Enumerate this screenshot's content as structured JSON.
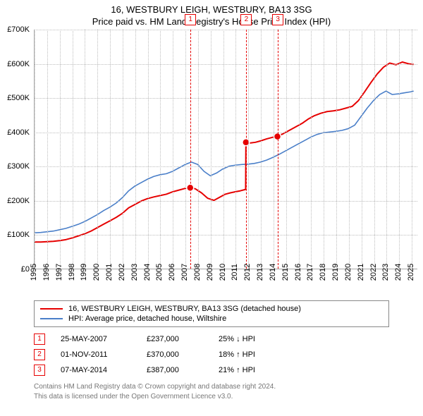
{
  "titles": {
    "main": "16, WESTBURY LEIGH, WESTBURY, BA13 3SG",
    "sub": "Price paid vs. HM Land Registry's House Price Index (HPI)"
  },
  "chart": {
    "type": "line",
    "background_color": "#ffffff",
    "grid_color": "#bdbdbd",
    "axis_color": "#aaaaaa",
    "label_fontsize": 11,
    "xlim": [
      1995,
      2025.5
    ],
    "ylim": [
      0,
      700
    ],
    "y_ticks": [
      0,
      100,
      200,
      300,
      400,
      500,
      600,
      700
    ],
    "y_tick_labels": [
      "£0",
      "£100K",
      "£200K",
      "£300K",
      "£400K",
      "£500K",
      "£600K",
      "£700K"
    ],
    "x_ticks": [
      1995,
      1996,
      1997,
      1998,
      1999,
      2000,
      2001,
      2002,
      2003,
      2004,
      2005,
      2006,
      2007,
      2008,
      2009,
      2010,
      2011,
      2012,
      2013,
      2014,
      2015,
      2016,
      2017,
      2018,
      2019,
      2020,
      2021,
      2022,
      2023,
      2024,
      2025
    ],
    "series": [
      {
        "id": "property",
        "label": "16, WESTBURY LEIGH, WESTBURY, BA13 3SG (detached house)",
        "color": "#e60000",
        "line_width": 2,
        "points": [
          [
            1995.0,
            78
          ],
          [
            1995.5,
            78
          ],
          [
            1996.0,
            79
          ],
          [
            1996.5,
            80
          ],
          [
            1997.0,
            82
          ],
          [
            1997.5,
            85
          ],
          [
            1998.0,
            90
          ],
          [
            1998.5,
            96
          ],
          [
            1999.0,
            102
          ],
          [
            1999.5,
            110
          ],
          [
            2000.0,
            120
          ],
          [
            2000.5,
            130
          ],
          [
            2001.0,
            140
          ],
          [
            2001.5,
            150
          ],
          [
            2002.0,
            162
          ],
          [
            2002.5,
            178
          ],
          [
            2003.0,
            188
          ],
          [
            2003.5,
            198
          ],
          [
            2004.0,
            205
          ],
          [
            2004.5,
            210
          ],
          [
            2005.0,
            214
          ],
          [
            2005.5,
            218
          ],
          [
            2006.0,
            225
          ],
          [
            2006.5,
            230
          ],
          [
            2007.0,
            235
          ],
          [
            2007.4,
            237
          ],
          [
            2007.8,
            234
          ],
          [
            2008.3,
            222
          ],
          [
            2008.8,
            206
          ],
          [
            2009.3,
            200
          ],
          [
            2009.8,
            210
          ],
          [
            2010.2,
            218
          ],
          [
            2010.6,
            222
          ],
          [
            2011.0,
            225
          ],
          [
            2011.4,
            228
          ],
          [
            2011.82,
            232
          ],
          [
            2011.84,
            370
          ],
          [
            2012.2,
            368
          ],
          [
            2012.6,
            370
          ],
          [
            2013.0,
            374
          ],
          [
            2013.5,
            380
          ],
          [
            2014.0,
            385
          ],
          [
            2014.35,
            387
          ],
          [
            2014.8,
            395
          ],
          [
            2015.3,
            405
          ],
          [
            2015.8,
            415
          ],
          [
            2016.3,
            425
          ],
          [
            2016.8,
            438
          ],
          [
            2017.3,
            448
          ],
          [
            2017.8,
            455
          ],
          [
            2018.3,
            460
          ],
          [
            2018.8,
            462
          ],
          [
            2019.3,
            465
          ],
          [
            2019.8,
            470
          ],
          [
            2020.3,
            475
          ],
          [
            2020.8,
            492
          ],
          [
            2021.3,
            518
          ],
          [
            2021.8,
            545
          ],
          [
            2022.3,
            570
          ],
          [
            2022.8,
            590
          ],
          [
            2023.3,
            602
          ],
          [
            2023.8,
            597
          ],
          [
            2024.3,
            605
          ],
          [
            2024.8,
            600
          ],
          [
            2025.2,
            598
          ]
        ]
      },
      {
        "id": "hpi",
        "label": "HPI: Average price, detached house, Wiltshire",
        "color": "#4a7fc9",
        "line_width": 1.6,
        "points": [
          [
            1995.0,
            105
          ],
          [
            1995.5,
            106
          ],
          [
            1996.0,
            108
          ],
          [
            1996.5,
            110
          ],
          [
            1997.0,
            114
          ],
          [
            1997.5,
            118
          ],
          [
            1998.0,
            124
          ],
          [
            1998.5,
            130
          ],
          [
            1999.0,
            138
          ],
          [
            1999.5,
            148
          ],
          [
            2000.0,
            158
          ],
          [
            2000.5,
            170
          ],
          [
            2001.0,
            180
          ],
          [
            2001.5,
            192
          ],
          [
            2002.0,
            208
          ],
          [
            2002.5,
            228
          ],
          [
            2003.0,
            242
          ],
          [
            2003.5,
            252
          ],
          [
            2004.0,
            262
          ],
          [
            2004.5,
            270
          ],
          [
            2005.0,
            275
          ],
          [
            2005.5,
            278
          ],
          [
            2006.0,
            285
          ],
          [
            2006.5,
            295
          ],
          [
            2007.0,
            305
          ],
          [
            2007.5,
            312
          ],
          [
            2008.0,
            305
          ],
          [
            2008.5,
            285
          ],
          [
            2009.0,
            272
          ],
          [
            2009.5,
            280
          ],
          [
            2010.0,
            292
          ],
          [
            2010.5,
            300
          ],
          [
            2011.0,
            303
          ],
          [
            2011.5,
            305
          ],
          [
            2012.0,
            306
          ],
          [
            2012.5,
            308
          ],
          [
            2013.0,
            312
          ],
          [
            2013.5,
            318
          ],
          [
            2014.0,
            326
          ],
          [
            2014.5,
            335
          ],
          [
            2015.0,
            345
          ],
          [
            2015.5,
            355
          ],
          [
            2016.0,
            365
          ],
          [
            2016.5,
            375
          ],
          [
            2017.0,
            385
          ],
          [
            2017.5,
            393
          ],
          [
            2018.0,
            398
          ],
          [
            2018.5,
            400
          ],
          [
            2019.0,
            402
          ],
          [
            2019.5,
            405
          ],
          [
            2020.0,
            410
          ],
          [
            2020.5,
            420
          ],
          [
            2021.0,
            445
          ],
          [
            2021.5,
            470
          ],
          [
            2022.0,
            492
          ],
          [
            2022.5,
            510
          ],
          [
            2023.0,
            520
          ],
          [
            2023.5,
            510
          ],
          [
            2024.0,
            512
          ],
          [
            2024.5,
            515
          ],
          [
            2025.0,
            518
          ],
          [
            2025.2,
            520
          ]
        ]
      }
    ],
    "markers": [
      {
        "x": 2007.4,
        "y": 237,
        "color": "#e60000",
        "radius": 5
      },
      {
        "x": 2011.84,
        "y": 370,
        "color": "#e60000",
        "radius": 5
      },
      {
        "x": 2014.35,
        "y": 387,
        "color": "#e60000",
        "radius": 5
      }
    ],
    "event_lines": [
      {
        "x": 2007.4,
        "label": "1",
        "color": "#e60000"
      },
      {
        "x": 2011.84,
        "label": "2",
        "color": "#e60000"
      },
      {
        "x": 2014.35,
        "label": "3",
        "color": "#e60000"
      }
    ]
  },
  "legend": {
    "items": [
      {
        "color": "#e60000",
        "label": "16, WESTBURY LEIGH, WESTBURY, BA13 3SG (detached house)"
      },
      {
        "color": "#4a7fc9",
        "label": "HPI: Average price, detached house, Wiltshire"
      }
    ]
  },
  "events_table": {
    "rows": [
      {
        "n": "1",
        "color": "#e60000",
        "date": "25-MAY-2007",
        "price": "£237,000",
        "diff": "25% ↓ HPI"
      },
      {
        "n": "2",
        "color": "#e60000",
        "date": "01-NOV-2011",
        "price": "£370,000",
        "diff": "18% ↑ HPI"
      },
      {
        "n": "3",
        "color": "#e60000",
        "date": "07-MAY-2014",
        "price": "£387,000",
        "diff": "21% ↑ HPI"
      }
    ]
  },
  "footer": {
    "line1": "Contains HM Land Registry data © Crown copyright and database right 2024.",
    "line2": "This data is licensed under the Open Government Licence v3.0."
  }
}
